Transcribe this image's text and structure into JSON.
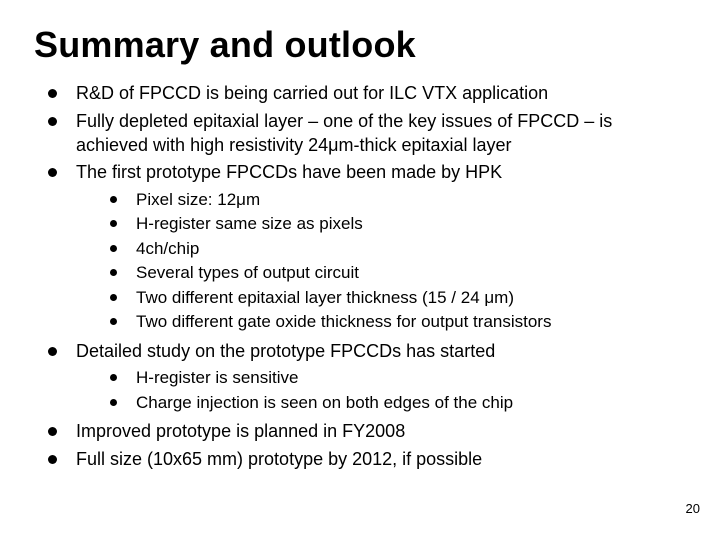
{
  "title": "Summary and outlook",
  "page_number": "20",
  "bullets": {
    "b0": "R&D of FPCCD is being carried out for ILC VTX application",
    "b1": "Fully depleted epitaxial layer – one of the key issues of FPCCD – is achieved with high resistivity 24μm-thick epitaxial layer",
    "b2": "The first prototype FPCCDs have been made by HPK",
    "b2s": {
      "s0": "Pixel size: 12μm",
      "s1": "H-register same size as pixels",
      "s2": "4ch/chip",
      "s3": "Several types of output circuit",
      "s4": "Two different epitaxial layer thickness (15 / 24 μm)",
      "s5": "Two different gate oxide thickness for output transistors"
    },
    "b3": "Detailed study on the prototype FPCCDs has started",
    "b3s": {
      "s0": "H-register is sensitive",
      "s1": "Charge injection is seen on both edges of the chip"
    },
    "b4": "Improved prototype is planned in FY2008",
    "b5": "Full size (10x65 mm) prototype by 2012, if possible"
  }
}
